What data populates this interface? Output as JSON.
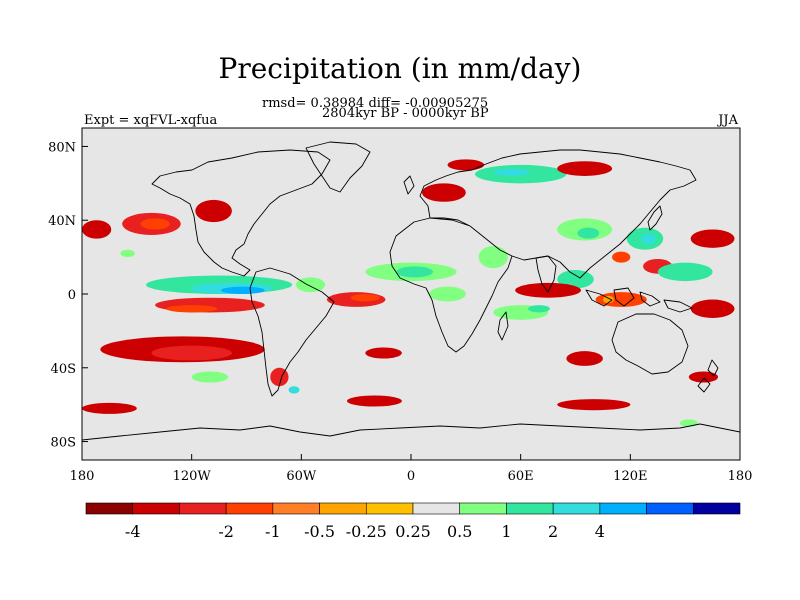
{
  "title": "Precipitation (in mm/day)",
  "rmsd_text": "rmsd= 0.38984 diff= -0.00905275",
  "period": "2804kyr BP - 0000kyr BP",
  "experiment": "Expt = xqFVL-xqfua",
  "season": "JJA",
  "map_extent": {
    "lon_min": -180,
    "lon_max": 180,
    "lat_min": -90,
    "lat_max": 90
  },
  "lat_ticks": [
    {
      "value": 80,
      "label": "80N"
    },
    {
      "value": 40,
      "label": "40N"
    },
    {
      "value": 0,
      "label": "0"
    },
    {
      "value": -40,
      "label": "40S"
    },
    {
      "value": -80,
      "label": "80S"
    }
  ],
  "lon_ticks": [
    {
      "value": -180,
      "label": "180"
    },
    {
      "value": -120,
      "label": "120W"
    },
    {
      "value": -60,
      "label": "60W"
    },
    {
      "value": 0,
      "label": "0"
    },
    {
      "value": 60,
      "label": "60E"
    },
    {
      "value": 120,
      "label": "120E"
    },
    {
      "value": 180,
      "label": "180"
    }
  ],
  "colorbar": {
    "colors": [
      "#8b0000",
      "#cc0000",
      "#e82020",
      "#ff4000",
      "#ff7f27",
      "#ffa500",
      "#ffc000",
      "#e6e6e6",
      "#80ff80",
      "#33e6a0",
      "#33dddd",
      "#00b0ff",
      "#0060ff",
      "#0000a0"
    ],
    "labels": [
      "-4",
      "-2",
      "-1",
      "-0.5",
      "-0.25",
      "0.25",
      "0.5",
      "1",
      "2",
      "4"
    ],
    "boundary_index": [
      1,
      3,
      4,
      5,
      6,
      7,
      8,
      9,
      10,
      11
    ]
  },
  "anomaly_regions": [
    {
      "name": "n-pacific-dry",
      "level": 2,
      "lon": -142,
      "lat": 38,
      "rlon": 16,
      "rlat": 6
    },
    {
      "name": "n-pacific-dry-core",
      "level": 3,
      "lon": -140,
      "lat": 38,
      "rlon": 8,
      "rlat": 3
    },
    {
      "name": "ne-pacific-dry",
      "level": 1,
      "lon": -108,
      "lat": 45,
      "rlon": 10,
      "rlat": 6
    },
    {
      "name": "w-pacific-west-edge",
      "level": 1,
      "lon": -172,
      "lat": 35,
      "rlon": 8,
      "rlat": 5
    },
    {
      "name": "hawaii-wet",
      "level": 8,
      "lon": -155,
      "lat": 22,
      "rlon": 4,
      "rlat": 2
    },
    {
      "name": "e-pacific-wet-band",
      "level": 9,
      "lon": -105,
      "lat": 5,
      "rlon": 40,
      "rlat": 5
    },
    {
      "name": "e-pacific-wet-mid",
      "level": 10,
      "lon": -98,
      "lat": 3,
      "rlon": 22,
      "rlat": 3
    },
    {
      "name": "e-pacific-wet-core",
      "level": 11,
      "lon": -92,
      "lat": 2,
      "rlon": 12,
      "rlat": 2
    },
    {
      "name": "e-pacific-dry-south",
      "level": 2,
      "lon": -110,
      "lat": -6,
      "rlon": 30,
      "rlat": 4
    },
    {
      "name": "e-pacific-dry-south-core",
      "level": 3,
      "lon": -120,
      "lat": -8,
      "rlon": 14,
      "rlat": 2
    },
    {
      "name": "s-pacific-dry",
      "level": 1,
      "lon": -125,
      "lat": -30,
      "rlon": 45,
      "rlat": 7
    },
    {
      "name": "s-pacific-dry-core",
      "level": 2,
      "lon": -120,
      "lat": -32,
      "rlon": 22,
      "rlat": 4
    },
    {
      "name": "atlantic-itcz-dry",
      "level": 2,
      "lon": -30,
      "lat": -3,
      "rlon": 16,
      "rlat": 4
    },
    {
      "name": "atlantic-itcz-dry-core",
      "level": 3,
      "lon": -25,
      "lat": -2,
      "rlon": 8,
      "rlat": 2
    },
    {
      "name": "n-brazil-wet",
      "level": 8,
      "lon": -55,
      "lat": 5,
      "rlon": 8,
      "rlat": 4
    },
    {
      "name": "sahel-wet",
      "level": 8,
      "lon": 0,
      "lat": 12,
      "rlon": 25,
      "rlat": 5
    },
    {
      "name": "sahel-wet-core",
      "level": 9,
      "lon": 2,
      "lat": 12,
      "rlon": 10,
      "rlat": 3
    },
    {
      "name": "africa-equator-wet",
      "level": 8,
      "lon": 20,
      "lat": 0,
      "rlon": 10,
      "rlat": 4
    },
    {
      "name": "arabia-wet",
      "level": 8,
      "lon": 45,
      "lat": 20,
      "rlon": 8,
      "rlat": 6
    },
    {
      "name": "europe-dry",
      "level": 1,
      "lon": 18,
      "lat": 55,
      "rlon": 12,
      "rlat": 5
    },
    {
      "name": "siberia-wet",
      "level": 9,
      "lon": 60,
      "lat": 65,
      "rlon": 25,
      "rlat": 5
    },
    {
      "name": "siberia-wet-core",
      "level": 10,
      "lon": 55,
      "lat": 66,
      "rlon": 10,
      "rlat": 2
    },
    {
      "name": "siberia-dry",
      "level": 1,
      "lon": 95,
      "lat": 68,
      "rlon": 15,
      "rlat": 4
    },
    {
      "name": "arctic-dry",
      "level": 1,
      "lon": 30,
      "lat": 70,
      "rlon": 10,
      "rlat": 3
    },
    {
      "name": "central-asia-wet",
      "level": 8,
      "lon": 95,
      "lat": 35,
      "rlon": 15,
      "rlat": 6
    },
    {
      "name": "central-asia-wet-core",
      "level": 9,
      "lon": 97,
      "lat": 33,
      "rlon": 6,
      "rlat": 3
    },
    {
      "name": "east-asia-wet",
      "level": 9,
      "lon": 128,
      "lat": 30,
      "rlon": 10,
      "rlat": 6
    },
    {
      "name": "east-asia-wet-core",
      "level": 10,
      "lon": 130,
      "lat": 30,
      "rlon": 4,
      "rlat": 3
    },
    {
      "name": "s-china-dry",
      "level": 3,
      "lon": 115,
      "lat": 20,
      "rlon": 5,
      "rlat": 3
    },
    {
      "name": "w-pacific-dry",
      "level": 2,
      "lon": 135,
      "lat": 15,
      "rlon": 8,
      "rlat": 4
    },
    {
      "name": "w-pacific-wet",
      "level": 9,
      "lon": 150,
      "lat": 12,
      "rlon": 15,
      "rlat": 5
    },
    {
      "name": "nw-pacific-dry",
      "level": 1,
      "lon": 165,
      "lat": 30,
      "rlon": 12,
      "rlat": 5
    },
    {
      "name": "bay-of-bengal-wet",
      "level": 9,
      "lon": 90,
      "lat": 8,
      "rlon": 10,
      "rlat": 5
    },
    {
      "name": "indian-ocean-dry",
      "level": 1,
      "lon": 75,
      "lat": 2,
      "rlon": 18,
      "rlat": 4
    },
    {
      "name": "maritime-continent-dry",
      "level": 3,
      "lon": 115,
      "lat": -3,
      "rlon": 14,
      "rlat": 4
    },
    {
      "name": "maritime-continent-dry-core",
      "level": 5,
      "lon": 108,
      "lat": -3,
      "rlon": 3,
      "rlat": 2
    },
    {
      "name": "sw-pacific-dry",
      "level": 1,
      "lon": 165,
      "lat": -8,
      "rlon": 12,
      "rlat": 5
    },
    {
      "name": "s-indian-wet",
      "level": 8,
      "lon": 60,
      "lat": -10,
      "rlon": 15,
      "rlat": 4
    },
    {
      "name": "s-indian-wet-core",
      "level": 9,
      "lon": 70,
      "lat": -8,
      "rlon": 6,
      "rlat": 2
    },
    {
      "name": "australia-west-dry",
      "level": 1,
      "lon": 95,
      "lat": -35,
      "rlon": 10,
      "rlat": 4
    },
    {
      "name": "s-atlantic-dry",
      "level": 1,
      "lon": -15,
      "lat": -32,
      "rlon": 10,
      "rlat": 3
    },
    {
      "name": "patagonia-dry",
      "level": 2,
      "lon": -72,
      "lat": -45,
      "rlon": 5,
      "rlat": 5
    },
    {
      "name": "patagonia-wet",
      "level": 10,
      "lon": -64,
      "lat": -52,
      "rlon": 3,
      "rlat": 2
    },
    {
      "name": "southern-ocean-dry-a",
      "level": 1,
      "lon": -165,
      "lat": -62,
      "rlon": 15,
      "rlat": 3
    },
    {
      "name": "southern-ocean-dry-b",
      "level": 1,
      "lon": -20,
      "lat": -58,
      "rlon": 15,
      "rlat": 3
    },
    {
      "name": "southern-ocean-dry-c",
      "level": 1,
      "lon": 100,
      "lat": -60,
      "rlon": 20,
      "rlat": 3
    },
    {
      "name": "southern-ocean-wet-a",
      "level": 8,
      "lon": -110,
      "lat": -45,
      "rlon": 10,
      "rlat": 3
    },
    {
      "name": "southern-ocean-wet-b",
      "level": 8,
      "lon": 152,
      "lat": -70,
      "rlon": 5,
      "rlat": 2
    },
    {
      "name": "southern-ocean-dry-d",
      "level": 1,
      "lon": 160,
      "lat": -45,
      "rlon": 8,
      "rlat": 3
    }
  ]
}
